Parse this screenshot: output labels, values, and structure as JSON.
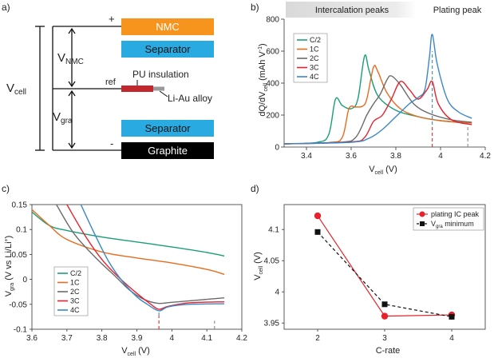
{
  "panel_letters": {
    "a": "a)",
    "b": "b)",
    "c": "c)",
    "d": "d)"
  },
  "cell_schematic": {
    "layers": [
      {
        "label": "NMC",
        "color": "#f7941d"
      },
      {
        "label": "Separator",
        "color": "#29abe2"
      },
      {
        "label": "Separator",
        "color": "#29abe2"
      },
      {
        "label": "Graphite",
        "color": "#000000"
      }
    ],
    "plus_sign": "+",
    "minus_sign": "-",
    "ref_label": "ref",
    "pu_label": "PU insulation",
    "alloy_label": "Li-Au alloy",
    "v_cell_main": "V",
    "v_cell_sub": "cell",
    "v_nmc_main": "V",
    "v_nmc_sub": "NMC",
    "v_gra_main": "V",
    "v_gra_sub": "gra",
    "ref_wire_color": "#c1272d",
    "alloy_color": "#999999"
  },
  "colors": {
    "C/2": "#1a9e77",
    "1C": "#e86b1e",
    "2C": "#6b6b6b",
    "3C": "#e8222d",
    "4C": "#3b87c8"
  },
  "chart_data": [
    {
      "id": "b",
      "type": "line",
      "banner_left": "Intercalation peaks",
      "banner_right": "Plating peak",
      "xlabel_main": "V",
      "xlabel_sub": "cell",
      "xlabel_unit": " (V)",
      "ylabel_pre": "dQ/dV",
      "ylabel_sub": "cell",
      "ylabel_unit": " (mAh V",
      "ylabel_sup": "-1",
      "ylabel_close": ")",
      "xlim": [
        3.3,
        4.2
      ],
      "ylim": [
        0,
        800
      ],
      "xticks": [
        3.4,
        3.6,
        3.8,
        4.0,
        4.2
      ],
      "xtick_labels": [
        "3.4",
        "3.6",
        "3.8",
        "4",
        "4.2"
      ],
      "yticks": [
        0,
        200,
        400,
        600,
        800
      ],
      "ytick_labels": [
        "0",
        "200",
        "400",
        "600",
        "800"
      ],
      "markers": [
        {
          "x": 3.963,
          "color": "#e8222d",
          "y_from": 0,
          "y_to": 140
        },
        {
          "x": 3.963,
          "color": "#3b87c8",
          "y_from": 140,
          "y_to": 600
        },
        {
          "x": 4.122,
          "color": "#888888",
          "y_from": 0,
          "y_to": 140
        }
      ],
      "series": [
        {
          "name": "C/2",
          "points": [
            [
              3.3,
              20
            ],
            [
              3.45,
              30
            ],
            [
              3.5,
              80
            ],
            [
              3.53,
              300
            ],
            [
              3.56,
              260
            ],
            [
              3.6,
              240
            ],
            [
              3.63,
              300
            ],
            [
              3.66,
              570
            ],
            [
              3.68,
              480
            ],
            [
              3.72,
              320
            ],
            [
              3.8,
              230
            ],
            [
              3.9,
              190
            ],
            [
              4.0,
              165
            ],
            [
              4.12,
              150
            ]
          ]
        },
        {
          "name": "1C",
          "points": [
            [
              3.3,
              20
            ],
            [
              3.5,
              28
            ],
            [
              3.56,
              60
            ],
            [
              3.59,
              240
            ],
            [
              3.62,
              250
            ],
            [
              3.65,
              255
            ],
            [
              3.67,
              300
            ],
            [
              3.7,
              500
            ],
            [
              3.72,
              470
            ],
            [
              3.76,
              340
            ],
            [
              3.82,
              240
            ],
            [
              3.9,
              190
            ],
            [
              4.0,
              165
            ],
            [
              4.14,
              150
            ]
          ]
        },
        {
          "name": "2C",
          "points": [
            [
              3.3,
              20
            ],
            [
              3.55,
              30
            ],
            [
              3.62,
              60
            ],
            [
              3.67,
              200
            ],
            [
              3.7,
              270
            ],
            [
              3.73,
              330
            ],
            [
              3.76,
              420
            ],
            [
              3.78,
              445
            ],
            [
              3.82,
              390
            ],
            [
              3.88,
              270
            ],
            [
              3.95,
              210
            ],
            [
              4.05,
              170
            ],
            [
              4.14,
              155
            ]
          ]
        },
        {
          "name": "3C",
          "points": [
            [
              3.3,
              20
            ],
            [
              3.6,
              32
            ],
            [
              3.66,
              60
            ],
            [
              3.7,
              160
            ],
            [
              3.74,
              200
            ],
            [
              3.78,
              300
            ],
            [
              3.82,
              410
            ],
            [
              3.86,
              360
            ],
            [
              3.9,
              300
            ],
            [
              3.94,
              360
            ],
            [
              3.963,
              410
            ],
            [
              3.99,
              270
            ],
            [
              4.05,
              170
            ],
            [
              4.14,
              140
            ]
          ]
        },
        {
          "name": "4C",
          "points": [
            [
              3.3,
              20
            ],
            [
              3.6,
              30
            ],
            [
              3.68,
              55
            ],
            [
              3.74,
              110
            ],
            [
              3.8,
              190
            ],
            [
              3.86,
              270
            ],
            [
              3.9,
              310
            ],
            [
              3.93,
              360
            ],
            [
              3.95,
              560
            ],
            [
              3.963,
              705
            ],
            [
              3.985,
              520
            ],
            [
              4.03,
              300
            ],
            [
              4.08,
              220
            ],
            [
              4.14,
              180
            ]
          ]
        }
      ],
      "legend": [
        "C/2",
        "1C",
        "2C",
        "3C",
        "4C"
      ]
    },
    {
      "id": "c",
      "type": "line",
      "xlabel_main": "V",
      "xlabel_sub": "cell",
      "xlabel_unit": " (V)",
      "ylabel_main": "V",
      "ylabel_sub": "gra",
      "ylabel_unit": " (V vs Li/Li",
      "ylabel_sup": "+",
      "ylabel_close": ")",
      "xlim": [
        3.6,
        4.2
      ],
      "ylim": [
        -0.1,
        0.15
      ],
      "xticks": [
        3.6,
        3.7,
        3.8,
        3.9,
        4.0,
        4.1,
        4.2
      ],
      "xtick_labels": [
        "3.6",
        "3.7",
        "3.8",
        "3.9",
        "4",
        "4.1",
        "4.2"
      ],
      "yticks": [
        -0.1,
        -0.05,
        0,
        0.05,
        0.1,
        0.15
      ],
      "ytick_labels": [
        "-0.1",
        "-0.05",
        "0",
        "0.05",
        "0.1",
        "0.15"
      ],
      "markers": [
        {
          "x": 3.963,
          "color": "#e8222d",
          "y_from": -0.1,
          "y_to": -0.073
        },
        {
          "x": 3.963,
          "color": "#3b87c8",
          "y_from": -0.073,
          "y_to": -0.063
        },
        {
          "x": 4.122,
          "color": "#888888",
          "y_from": -0.1,
          "y_to": -0.083
        }
      ],
      "series": [
        {
          "name": "C/2",
          "points": [
            [
              3.6,
              0.135
            ],
            [
              3.65,
              0.108
            ],
            [
              3.7,
              0.098
            ],
            [
              3.8,
              0.085
            ],
            [
              3.9,
              0.075
            ],
            [
              4.0,
              0.065
            ],
            [
              4.1,
              0.054
            ],
            [
              4.15,
              0.047
            ]
          ]
        },
        {
          "name": "1C",
          "points": [
            [
              3.6,
              0.14
            ],
            [
              3.65,
              0.108
            ],
            [
              3.7,
              0.08
            ],
            [
              3.8,
              0.055
            ],
            [
              3.9,
              0.043
            ],
            [
              4.0,
              0.033
            ],
            [
              4.1,
              0.02
            ],
            [
              4.15,
              0.01
            ]
          ]
        },
        {
          "name": "2C",
          "points": [
            [
              3.67,
              0.15
            ],
            [
              3.72,
              0.092
            ],
            [
              3.78,
              0.045
            ],
            [
              3.84,
              0.005
            ],
            [
              3.88,
              -0.022
            ],
            [
              3.92,
              -0.04
            ],
            [
              3.96,
              -0.048
            ],
            [
              4.0,
              -0.046
            ],
            [
              4.1,
              -0.04
            ],
            [
              4.15,
              -0.037
            ]
          ]
        },
        {
          "name": "3C",
          "points": [
            [
              3.7,
              0.15
            ],
            [
              3.75,
              0.09
            ],
            [
              3.8,
              0.04
            ],
            [
              3.85,
              0.003
            ],
            [
              3.9,
              -0.028
            ],
            [
              3.94,
              -0.05
            ],
            [
              3.963,
              -0.06
            ],
            [
              3.99,
              -0.054
            ],
            [
              4.05,
              -0.047
            ],
            [
              4.15,
              -0.045
            ]
          ]
        },
        {
          "name": "4C",
          "points": [
            [
              3.74,
              0.15
            ],
            [
              3.78,
              0.09
            ],
            [
              3.82,
              0.035
            ],
            [
              3.86,
              -0.005
            ],
            [
              3.9,
              -0.035
            ],
            [
              3.93,
              -0.05
            ],
            [
              3.963,
              -0.063
            ],
            [
              3.99,
              -0.055
            ],
            [
              4.05,
              -0.05
            ],
            [
              4.15,
              -0.049
            ]
          ]
        }
      ],
      "legend": [
        "C/2",
        "1C",
        "2C",
        "3C",
        "4C"
      ]
    },
    {
      "id": "d",
      "type": "scatter",
      "xlabel": "C-rate",
      "ylabel_main": "V",
      "ylabel_sub": "cell",
      "ylabel_unit": " (V)",
      "xlim": [
        1.5,
        4.5
      ],
      "ylim": [
        3.94,
        4.14
      ],
      "xticks": [
        2,
        3,
        4
      ],
      "xtick_labels": [
        "2",
        "3",
        "4"
      ],
      "yticks": [
        3.95,
        4.0,
        4.05,
        4.1
      ],
      "ytick_labels": [
        "3.95",
        "4",
        "4.05",
        "4.1"
      ],
      "series": [
        {
          "name": "plating IC peak",
          "color": "#e8222d",
          "marker": "circle",
          "dash": false,
          "x": [
            2,
            3,
            4
          ],
          "y": [
            4.122,
            3.961,
            3.963
          ]
        },
        {
          "name_main": "V",
          "name_sub": "gra",
          "name_rest": " minimum",
          "color": "#111111",
          "marker": "square",
          "dash": true,
          "x": [
            2,
            3,
            4
          ],
          "y": [
            4.096,
            3.98,
            3.96
          ]
        }
      ]
    }
  ]
}
